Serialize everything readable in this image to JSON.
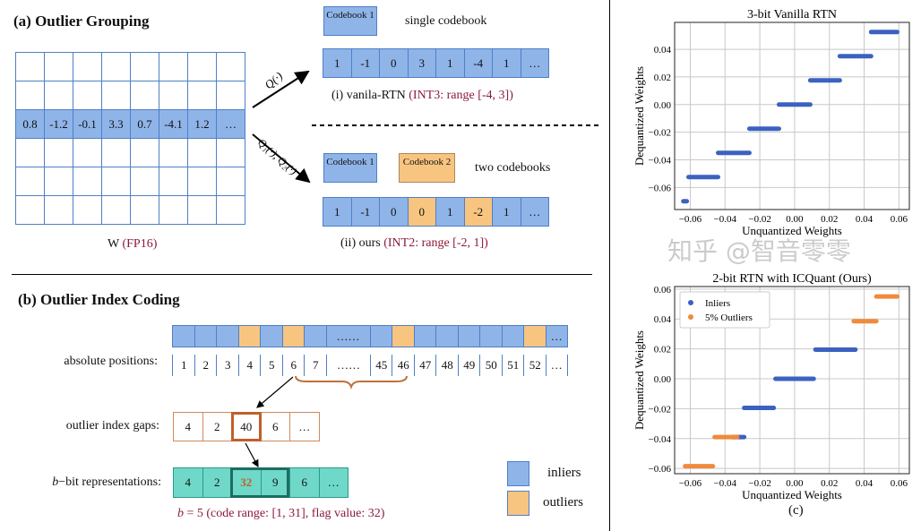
{
  "part_a": {
    "title": "(a) Outlier Grouping",
    "matrix_row": [
      "0.8",
      "-1.2",
      "-0.1",
      "3.3",
      "0.7",
      "-4.1",
      "1.2",
      "…"
    ],
    "matrix_label": "W",
    "matrix_label_type": "(FP16)",
    "arrow1_label": "Q(·)",
    "arrow2_label": "Q₁(·), Q₂(·)",
    "codebook1": "Codebook 1",
    "codebook2": "Codebook 2",
    "single_label": "single codebook",
    "two_label": "two codebooks",
    "row_i": [
      "1",
      "-1",
      "0",
      "3",
      "1",
      "-4",
      "1",
      "…"
    ],
    "row_ii": [
      "1",
      "-1",
      "0",
      "0",
      "1",
      "-2",
      "1",
      "…"
    ],
    "row_ii_outlier_idx": [
      3,
      5
    ],
    "caption_i": "(i) vanila-RTN",
    "caption_i_red": "(INT3: range [-4, 3])",
    "caption_ii": "(ii) ours",
    "caption_ii_red": "(INT2: range [-2, 1])"
  },
  "part_b": {
    "title": "(b) Outlier Index Coding",
    "positions_label": "absolute positions:",
    "positions": [
      "1",
      "2",
      "3",
      "4",
      "5",
      "6",
      "7",
      "……",
      "45",
      "46",
      "47",
      "48",
      "49",
      "50",
      "51",
      "52",
      "…"
    ],
    "bar_types": [
      "in",
      "in",
      "in",
      "out",
      "in",
      "out",
      "in",
      "in",
      "in",
      "out",
      "in",
      "in",
      "in",
      "in",
      "in",
      "out",
      "in"
    ],
    "bar_texts": [
      "",
      "",
      "",
      "",
      "",
      "",
      "",
      "……",
      "",
      "",
      "",
      "",
      "",
      "",
      "",
      "",
      "…"
    ],
    "gaps_label": "outlier index gaps:",
    "gaps": [
      "4",
      "2",
      "40",
      "6",
      "…"
    ],
    "bbit_label_var": "b",
    "bbit_label": "−bit representations:",
    "bbit": [
      "4",
      "2",
      "32",
      "9",
      "6",
      "…"
    ],
    "caption_var": "b",
    "caption": " = 5 (code range: [1, 31], flag value: 32)",
    "legend": {
      "inliers": "inliers",
      "outliers": "outliers"
    },
    "colors": {
      "inlier": "#8fb4e8",
      "outlier": "#f8c580",
      "code": "#6fd8c8"
    }
  },
  "chart_data": [
    {
      "type": "scatter",
      "title": "3-bit Vanilla RTN",
      "xlabel": "Unquantized Weights",
      "ylabel": "Dequantized Weights",
      "xlim": [
        -0.069,
        0.066
      ],
      "ylim": [
        -0.076,
        0.0595
      ],
      "grid": true,
      "xticks": [
        "−0.06",
        "−0.04",
        "−0.02",
        "0.00",
        "0.02",
        "0.04",
        "0.06"
      ],
      "xtick_values": [
        -0.06,
        -0.04,
        -0.02,
        0,
        0.02,
        0.04,
        0.06
      ],
      "yticks": [
        "−0.06",
        "−0.04",
        "−0.02",
        "0.00",
        "0.02",
        "0.04"
      ],
      "ytick_values": [
        -0.06,
        -0.04,
        -0.02,
        0,
        0.02,
        0.04
      ],
      "series": [
        {
          "color": "#3b62c0",
          "segments": [
            {
              "y": -0.07,
              "x": [
                -0.064,
                -0.062
              ]
            },
            {
              "y": -0.0525,
              "x": [
                -0.061,
                -0.044
              ]
            },
            {
              "y": -0.035,
              "x": [
                -0.044,
                -0.026
              ]
            },
            {
              "y": -0.0175,
              "x": [
                -0.026,
                -0.009
              ]
            },
            {
              "y": 0,
              "x": [
                -0.009,
                0.009
              ]
            },
            {
              "y": 0.0175,
              "x": [
                0.009,
                0.026
              ]
            },
            {
              "y": 0.035,
              "x": [
                0.026,
                0.044
              ]
            },
            {
              "y": 0.0525,
              "x": [
                0.044,
                0.059
              ]
            }
          ]
        }
      ]
    },
    {
      "type": "scatter",
      "title": "2-bit RTN with ICQuant (Ours)",
      "xlabel": "Unquantized Weights",
      "ylabel": "Dequantized Weights",
      "xlim": [
        -0.069,
        0.066
      ],
      "ylim": [
        -0.0635,
        0.0617
      ],
      "grid": true,
      "legend": "top-left",
      "xticks": [
        "−0.06",
        "−0.04",
        "−0.02",
        "0.00",
        "0.02",
        "0.04",
        "0.06"
      ],
      "xtick_values": [
        -0.06,
        -0.04,
        -0.02,
        0,
        0.02,
        0.04,
        0.06
      ],
      "yticks": [
        "−0.06",
        "−0.04",
        "−0.02",
        "0.00",
        "0.02",
        "0.04",
        "0.06"
      ],
      "ytick_values": [
        -0.06,
        -0.04,
        -0.02,
        0,
        0.02,
        0.04,
        0.06
      ],
      "series": [
        {
          "name": "Inliers",
          "color": "#3b62c0",
          "segments": [
            {
              "y": -0.039,
              "x": [
                -0.036,
                -0.029
              ]
            },
            {
              "y": -0.0195,
              "x": [
                -0.029,
                -0.012
              ]
            },
            {
              "y": 0,
              "x": [
                -0.011,
                0.011
              ]
            },
            {
              "y": 0.0195,
              "x": [
                0.012,
                0.035
              ]
            }
          ]
        },
        {
          "name": "5% Outliers",
          "color": "#f08a3c",
          "segments": [
            {
              "y": -0.0585,
              "x": [
                -0.063,
                -0.047
              ]
            },
            {
              "y": -0.039,
              "x": [
                -0.046,
                -0.033
              ]
            },
            {
              "y": 0.0385,
              "x": [
                0.034,
                0.047
              ]
            },
            {
              "y": 0.055,
              "x": [
                0.047,
                0.059
              ]
            }
          ]
        }
      ]
    }
  ],
  "caption_c": "(c)",
  "watermark": "知乎 @智音零零"
}
